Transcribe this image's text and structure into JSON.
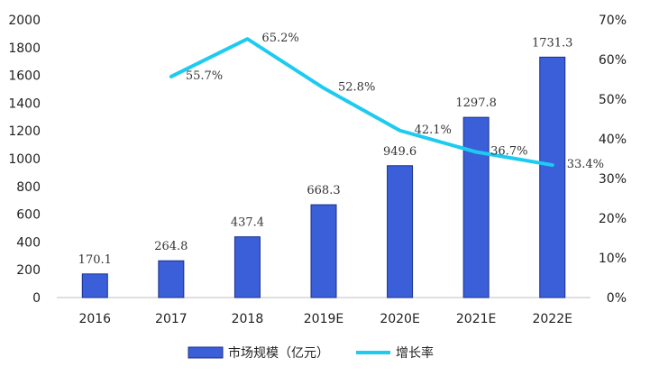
{
  "chart_data": {
    "type": "bar",
    "categories": [
      "2016",
      "2017",
      "2018",
      "2019E",
      "2020E",
      "2021E",
      "2022E"
    ],
    "ylim": [
      0,
      2000
    ],
    "y_ticks": [
      "0",
      "200",
      "400",
      "600",
      "800",
      "1000",
      "1200",
      "1400",
      "1600",
      "1800",
      "2000"
    ],
    "y2lim": [
      0,
      70
    ],
    "y2_ticks": [
      "0%",
      "10%",
      "20%",
      "30%",
      "40%",
      "50%",
      "60%",
      "70%"
    ],
    "grid": false,
    "legend_position": "bottom",
    "series": [
      {
        "name": "市场规模（亿元）",
        "type": "bar",
        "axis": "left",
        "color": "#3a5fd8",
        "values": [
          170.1,
          264.8,
          437.4,
          668.3,
          949.6,
          1297.8,
          1731.3
        ],
        "labels": [
          "170.1",
          "264.8",
          "437.4",
          "668.3",
          "949.6",
          "1297.8",
          "1731.3"
        ]
      },
      {
        "name": "增长率",
        "type": "line",
        "axis": "right",
        "color": "#1ecbf0",
        "values": [
          null,
          55.7,
          65.2,
          52.8,
          42.1,
          36.7,
          33.4
        ],
        "labels": [
          null,
          "55.7%",
          "65.2%",
          "52.8%",
          "42.1%",
          "36.7%",
          "33.4%"
        ]
      }
    ]
  }
}
